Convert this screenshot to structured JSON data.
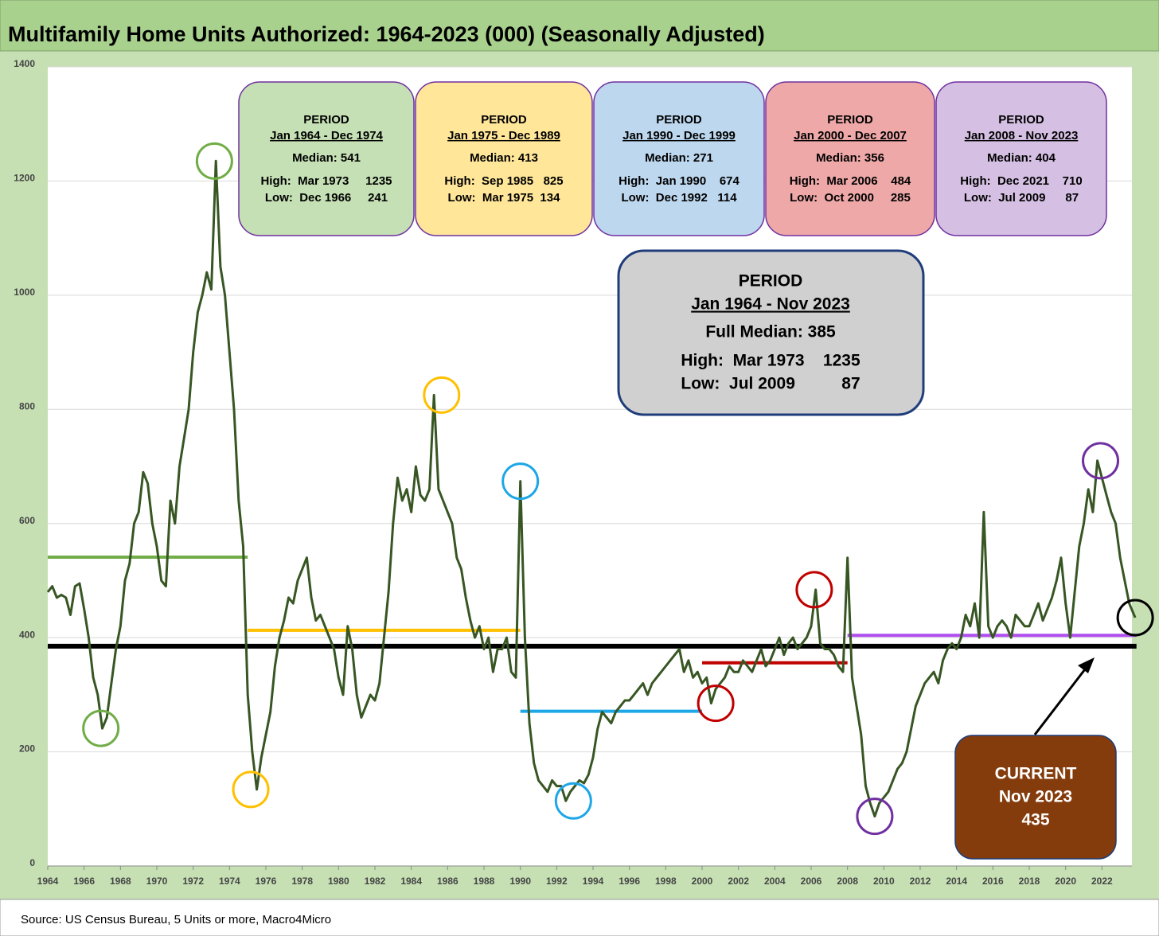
{
  "chart_data": {
    "type": "line",
    "title": "Multifamily Home Units Authorized: 1964-2023 (000) (Seasonally Adjusted)",
    "source": "Source: US Census Bureau, 5 Units or more, Macro4Micro",
    "color": "#375623",
    "xlim": [
      1964,
      2024
    ],
    "ylim": [
      0,
      1400
    ],
    "yticks": [
      0,
      200,
      400,
      600,
      800,
      1000,
      1200,
      1400
    ],
    "xticks": [
      1964,
      1966,
      1968,
      1970,
      1972,
      1974,
      1976,
      1978,
      1980,
      1982,
      1984,
      1986,
      1988,
      1990,
      1992,
      1994,
      1996,
      1998,
      2000,
      2002,
      2004,
      2006,
      2008,
      2010,
      2012,
      2014,
      2016,
      2018,
      2020,
      2022
    ],
    "grid": true,
    "x": [
      1964,
      1964.25,
      1964.5,
      1964.75,
      1965,
      1965.25,
      1965.5,
      1965.75,
      1966,
      1966.25,
      1966.5,
      1966.75,
      1967,
      1967.25,
      1967.5,
      1967.75,
      1968,
      1968.25,
      1968.5,
      1968.75,
      1969,
      1969.25,
      1969.5,
      1969.75,
      1970,
      1970.25,
      1970.5,
      1970.75,
      1971,
      1971.25,
      1971.5,
      1971.75,
      1972,
      1972.25,
      1972.5,
      1972.75,
      1973,
      1973.25,
      1973.5,
      1973.75,
      1974,
      1974.25,
      1974.5,
      1974.75,
      1975,
      1975.25,
      1975.5,
      1975.75,
      1976,
      1976.25,
      1976.5,
      1976.75,
      1977,
      1977.25,
      1977.5,
      1977.75,
      1978,
      1978.25,
      1978.5,
      1978.75,
      1979,
      1979.25,
      1979.5,
      1979.75,
      1980,
      1980.25,
      1980.5,
      1980.75,
      1981,
      1981.25,
      1981.5,
      1981.75,
      1982,
      1982.25,
      1982.5,
      1982.75,
      1983,
      1983.25,
      1983.5,
      1983.75,
      1984,
      1984.25,
      1984.5,
      1984.75,
      1985,
      1985.25,
      1985.5,
      1985.75,
      1986,
      1986.25,
      1986.5,
      1986.75,
      1987,
      1987.25,
      1987.5,
      1987.75,
      1988,
      1988.25,
      1988.5,
      1988.75,
      1989,
      1989.25,
      1989.5,
      1989.75,
      1990,
      1990.25,
      1990.5,
      1990.75,
      1991,
      1991.25,
      1991.5,
      1991.75,
      1992,
      1992.25,
      1992.5,
      1992.75,
      1993,
      1993.25,
      1993.5,
      1993.75,
      1994,
      1994.25,
      1994.5,
      1994.75,
      1995,
      1995.25,
      1995.5,
      1995.75,
      1996,
      1996.25,
      1996.5,
      1996.75,
      1997,
      1997.25,
      1997.5,
      1997.75,
      1998,
      1998.25,
      1998.5,
      1998.75,
      1999,
      1999.25,
      1999.5,
      1999.75,
      2000,
      2000.25,
      2000.5,
      2000.75,
      2001,
      2001.25,
      2001.5,
      2001.75,
      2002,
      2002.25,
      2002.5,
      2002.75,
      2003,
      2003.25,
      2003.5,
      2003.75,
      2004,
      2004.25,
      2004.5,
      2004.75,
      2005,
      2005.25,
      2005.5,
      2005.75,
      2006,
      2006.25,
      2006.5,
      2006.75,
      2007,
      2007.25,
      2007.5,
      2007.75,
      2008,
      2008.25,
      2008.5,
      2008.75,
      2009,
      2009.25,
      2009.5,
      2009.75,
      2010,
      2010.25,
      2010.5,
      2010.75,
      2011,
      2011.25,
      2011.5,
      2011.75,
      2012,
      2012.25,
      2012.5,
      2012.75,
      2013,
      2013.25,
      2013.5,
      2013.75,
      2014,
      2014.25,
      2014.5,
      2014.75,
      2015,
      2015.25,
      2015.5,
      2015.75,
      2016,
      2016.25,
      2016.5,
      2016.75,
      2017,
      2017.25,
      2017.5,
      2017.75,
      2018,
      2018.25,
      2018.5,
      2018.75,
      2019,
      2019.25,
      2019.5,
      2019.75,
      2020,
      2020.25,
      2020.5,
      2020.75,
      2021,
      2021.25,
      2021.5,
      2021.75,
      2022,
      2022.25,
      2022.5,
      2022.75,
      2023,
      2023.25,
      2023.5,
      2023.83
    ],
    "values": [
      480,
      490,
      470,
      475,
      470,
      440,
      490,
      495,
      450,
      400,
      330,
      300,
      241,
      260,
      320,
      380,
      420,
      500,
      530,
      600,
      620,
      690,
      670,
      600,
      560,
      500,
      490,
      640,
      600,
      700,
      750,
      800,
      900,
      970,
      1000,
      1040,
      1010,
      1235,
      1050,
      1000,
      900,
      800,
      640,
      560,
      300,
      200,
      134,
      190,
      230,
      270,
      350,
      400,
      430,
      470,
      460,
      500,
      520,
      540,
      470,
      430,
      440,
      420,
      400,
      380,
      330,
      300,
      420,
      380,
      300,
      260,
      280,
      300,
      290,
      320,
      400,
      480,
      600,
      680,
      640,
      660,
      620,
      700,
      650,
      640,
      660,
      825,
      660,
      640,
      620,
      600,
      540,
      520,
      470,
      430,
      400,
      420,
      380,
      400,
      340,
      380,
      380,
      400,
      340,
      330,
      674,
      400,
      250,
      180,
      150,
      140,
      130,
      150,
      140,
      140,
      114,
      130,
      140,
      150,
      145,
      160,
      190,
      240,
      270,
      260,
      250,
      270,
      280,
      290,
      290,
      300,
      310,
      320,
      300,
      320,
      330,
      340,
      350,
      360,
      370,
      380,
      340,
      360,
      330,
      340,
      320,
      330,
      285,
      310,
      320,
      330,
      350,
      340,
      340,
      360,
      350,
      340,
      360,
      380,
      350,
      360,
      380,
      400,
      370,
      390,
      400,
      380,
      390,
      400,
      420,
      484,
      390,
      380,
      380,
      370,
      350,
      340,
      540,
      330,
      280,
      230,
      140,
      110,
      87,
      110,
      120,
      130,
      150,
      170,
      180,
      200,
      240,
      280,
      300,
      320,
      330,
      340,
      320,
      360,
      380,
      390,
      380,
      400,
      440,
      420,
      460,
      400,
      620,
      420,
      400,
      420,
      430,
      420,
      400,
      440,
      430,
      420,
      420,
      440,
      460,
      430,
      450,
      470,
      500,
      540,
      460,
      400,
      480,
      560,
      600,
      660,
      620,
      710,
      680,
      650,
      620,
      600,
      540,
      500,
      460,
      435
    ],
    "reference_lines": [
      {
        "value": 541,
        "x": [
          1964,
          1975
        ],
        "color": "#70ad47"
      },
      {
        "value": 413,
        "x": [
          1975,
          1990
        ],
        "color": "#ffc000"
      },
      {
        "value": 271,
        "x": [
          1990,
          2000
        ],
        "color": "#1ea7e6"
      },
      {
        "value": 356,
        "x": [
          2000,
          2008
        ],
        "color": "#c00000"
      },
      {
        "value": 404,
        "x": [
          2008,
          2023.9
        ],
        "color": "#b04ef0"
      },
      {
        "value": 385,
        "x": [
          1964,
          2023.9
        ],
        "color": "#000000"
      }
    ],
    "markers": [
      {
        "x": 1966.92,
        "y": 241,
        "color": "#70ad47"
      },
      {
        "x": 1973.17,
        "y": 1235,
        "color": "#70ad47"
      },
      {
        "x": 1975.17,
        "y": 134,
        "color": "#ffc000"
      },
      {
        "x": 1985.67,
        "y": 825,
        "color": "#ffc000"
      },
      {
        "x": 1990,
        "y": 674,
        "color": "#1ea7e6"
      },
      {
        "x": 1992.92,
        "y": 114,
        "color": "#1ea7e6"
      },
      {
        "x": 2000.75,
        "y": 285,
        "color": "#c00000"
      },
      {
        "x": 2006.17,
        "y": 484,
        "color": "#c00000"
      },
      {
        "x": 2009.5,
        "y": 87,
        "color": "#7030a0"
      },
      {
        "x": 2021.92,
        "y": 710,
        "color": "#7030a0"
      },
      {
        "x": 2023.83,
        "y": 435,
        "color": "#000000"
      }
    ],
    "period_boxes": [
      {
        "label": "PERIOD",
        "range": "Jan 1964 - Dec 1974",
        "median": "Median: 541",
        "high": "High:  Mar 1973     1235",
        "low": "Low:  Dec 1966     241",
        "color": "#c5e0b4"
      },
      {
        "label": "PERIOD",
        "range": "Jan 1975 - Dec 1989",
        "median": "Median: 413",
        "high": "High:  Sep 1985   825",
        "low": "Low:  Mar 1975  134",
        "color": "#ffe699"
      },
      {
        "label": "PERIOD",
        "range": "Jan 1990 - Dec 1999",
        "median": "Median: 271",
        "high": "High:  Jan 1990    674",
        "low": "Low:  Dec 1992   114",
        "color": "#bdd7ee"
      },
      {
        "label": "PERIOD",
        "range": "Jan 2000 - Dec 2007",
        "median": "Median: 356",
        "high": "High:  Mar 2006    484",
        "low": "Low:  Oct 2000     285",
        "color": "#eea8a8"
      },
      {
        "label": "PERIOD",
        "range": "Jan 2008 - Nov 2023",
        "median": "Median: 404",
        "high": "High:  Dec 2021    710",
        "low": "Low:  Jul 2009      87",
        "color": "#d5c0e3"
      }
    ],
    "summary_box": {
      "label": "PERIOD",
      "range": "Jan 1964 - Nov 2023",
      "median": "Full Median: 385",
      "high": "High:  Mar 1973    1235",
      "low": "Low:  Jul 2009          87"
    },
    "current_box": {
      "label": "CURRENT",
      "date": "Nov 2023",
      "value": 435
    }
  }
}
